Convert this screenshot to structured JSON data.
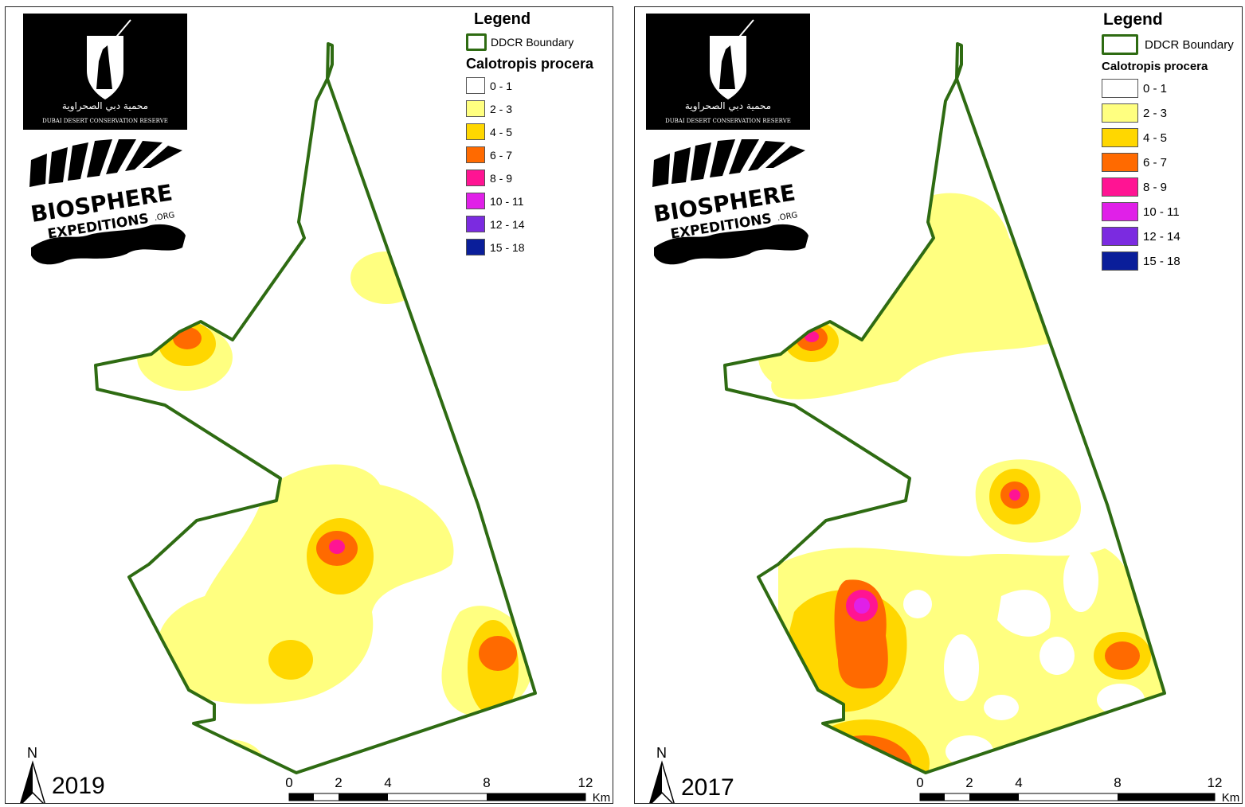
{
  "shared_legend": {
    "title": "Legend",
    "boundary_label": "DDCR Boundary",
    "species_label": "Calotropis procera",
    "classes": [
      {
        "label": "0 - 1",
        "color": "#ffffff"
      },
      {
        "label": "2 - 3",
        "color": "#ffff80"
      },
      {
        "label": "4 - 5",
        "color": "#ffd700"
      },
      {
        "label": "6 - 7",
        "color": "#ff6a00"
      },
      {
        "label": "8 - 9",
        "color": "#ff1493"
      },
      {
        "label": "10 - 11",
        "color": "#e020e8"
      },
      {
        "label": "12 - 14",
        "color": "#7b2be0"
      },
      {
        "label": "15 - 18",
        "color": "#0a1e9a"
      }
    ]
  },
  "logos": {
    "ddcr_arabic": "محمية دبي الصحراوية",
    "ddcr_english": "DUBAI DESERT CONSERVATION RESERVE",
    "biosphere_line1": "BIOSPHERE",
    "biosphere_line2": "EXPEDITIONS",
    "biosphere_suffix": ".ORG"
  },
  "panels": [
    {
      "year": "2019"
    },
    {
      "year": "2017"
    }
  ],
  "north_label": "N",
  "scale": {
    "ticks": [
      "0",
      "2",
      "4",
      "8",
      "12"
    ],
    "unit": "Km"
  },
  "colors": {
    "boundary": "#2e6b12"
  }
}
